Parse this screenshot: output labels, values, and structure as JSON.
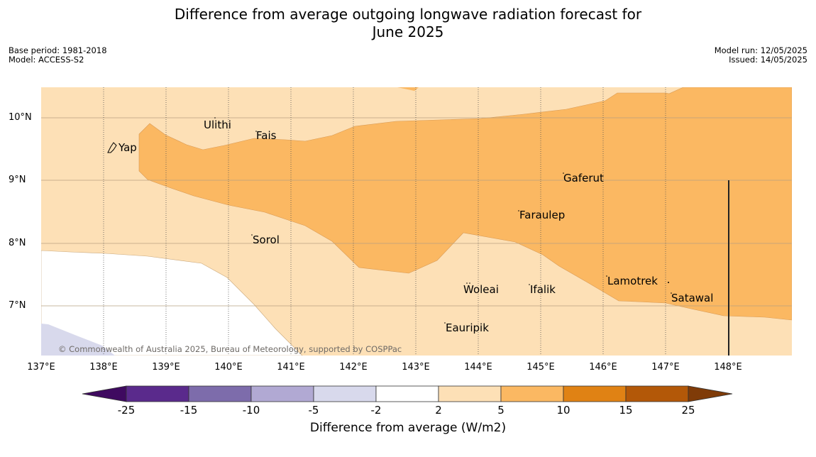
{
  "title_line1": "Difference from average outgoing longwave radiation forecast for",
  "title_line2": "June 2025",
  "base_period": "Base period: 1981-2018",
  "model": "Model: ACCESS-S2",
  "model_run": "Model run: 12/05/2025",
  "issued": "Issued: 14/05/2025",
  "copyright": "© Commonwealth of Australia 2025, Bureau of Meteorology, supported by COSPPac",
  "lat_labels": [
    "10°N",
    "9°N",
    "8°N",
    "7°N"
  ],
  "lon_labels": [
    "137°E",
    "138°E",
    "139°E",
    "140°E",
    "141°E",
    "142°E",
    "143°E",
    "144°E",
    "145°E",
    "146°E",
    "147°E",
    "148°E"
  ],
  "places": [
    {
      "name": "Yap"
    },
    {
      "name": "Ulithi"
    },
    {
      "name": "Fais"
    },
    {
      "name": "Gaferut"
    },
    {
      "name": "Faraulep"
    },
    {
      "name": "Sorol"
    },
    {
      "name": "Lamotrek"
    },
    {
      "name": "Woleai"
    },
    {
      "name": "Ifalik"
    },
    {
      "name": "Satawal"
    },
    {
      "name": "Eauripik"
    }
  ],
  "colorbar": {
    "title": "Difference from average (W/m2)",
    "ticks": [
      "-25",
      "-15",
      "-10",
      "-5",
      "-2",
      "2",
      "5",
      "10",
      "15",
      "25"
    ],
    "colors": [
      "#3f0a60",
      "#5a2a8c",
      "#7d6cab",
      "#b1a9d3",
      "#d8d9ec",
      "#ffffff",
      "#fde0b6",
      "#fbb862",
      "#e08214",
      "#b35808",
      "#7f3b08"
    ]
  }
}
